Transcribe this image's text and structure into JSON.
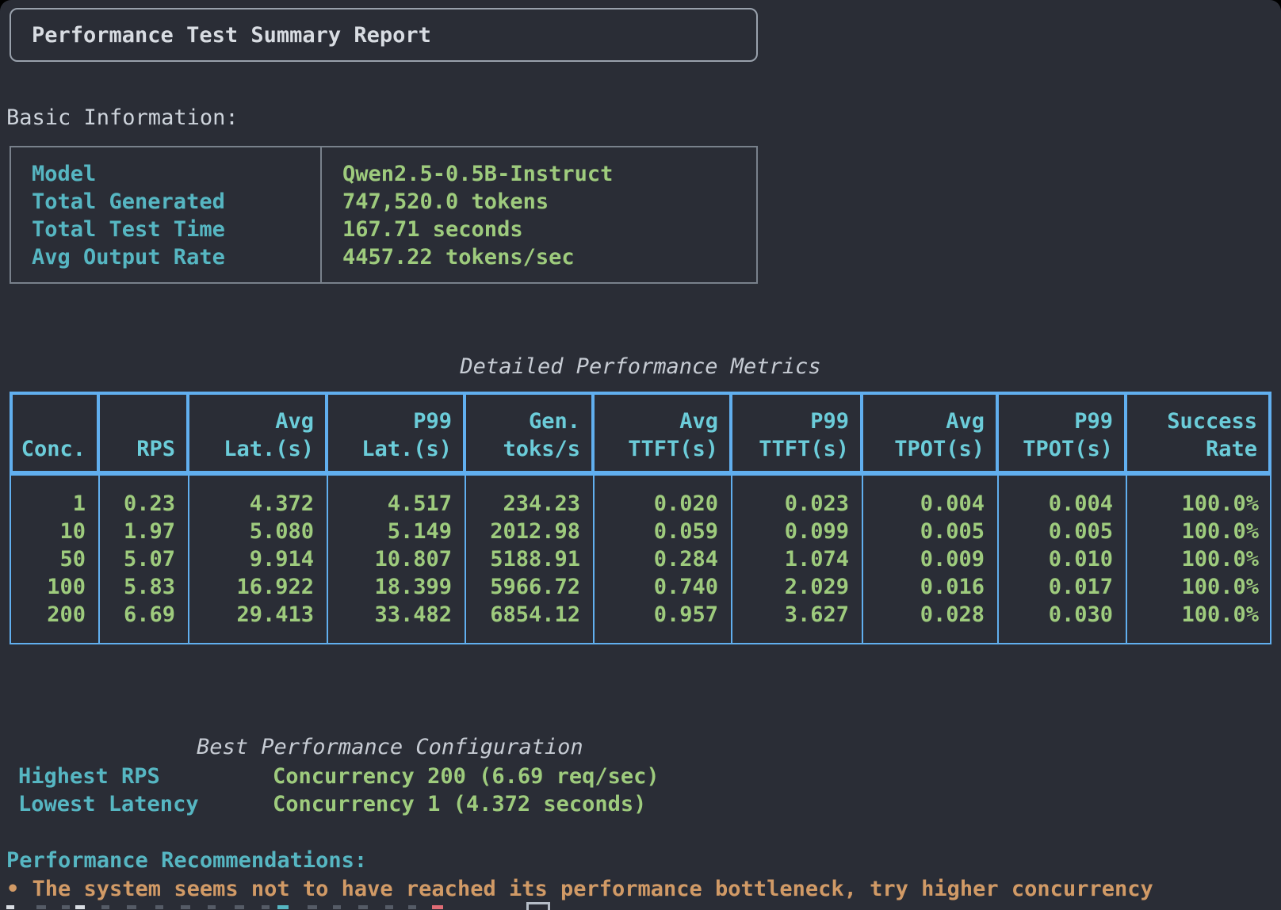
{
  "title": "Performance Test Summary Report",
  "basic_info": {
    "heading": "Basic Information:",
    "rows": [
      {
        "label": "Model",
        "value": "Qwen2.5-0.5B-Instruct"
      },
      {
        "label": "Total Generated",
        "value": "747,520.0 tokens"
      },
      {
        "label": "Total Test Time",
        "value": "167.71 seconds"
      },
      {
        "label": "Avg Output Rate",
        "value": "4457.22 tokens/sec"
      }
    ]
  },
  "metrics_table": {
    "title": "Detailed Performance Metrics",
    "columns": [
      [
        "Conc."
      ],
      [
        "RPS"
      ],
      [
        "Avg",
        "Lat.(s)"
      ],
      [
        "P99",
        "Lat.(s)"
      ],
      [
        "Gen.",
        "toks/s"
      ],
      [
        "Avg",
        "TTFT(s)"
      ],
      [
        "P99",
        "TTFT(s)"
      ],
      [
        "Avg",
        "TPOT(s)"
      ],
      [
        "P99",
        "TPOT(s)"
      ],
      [
        "Success",
        "Rate"
      ]
    ],
    "rows": [
      [
        "1",
        "0.23",
        "4.372",
        "4.517",
        "234.23",
        "0.020",
        "0.023",
        "0.004",
        "0.004",
        "100.0%"
      ],
      [
        "10",
        "1.97",
        "5.080",
        "5.149",
        "2012.98",
        "0.059",
        "0.099",
        "0.005",
        "0.005",
        "100.0%"
      ],
      [
        "50",
        "5.07",
        "9.914",
        "10.807",
        "5188.91",
        "0.284",
        "1.074",
        "0.009",
        "0.010",
        "100.0%"
      ],
      [
        "100",
        "5.83",
        "16.922",
        "18.399",
        "5966.72",
        "0.740",
        "2.029",
        "0.016",
        "0.017",
        "100.0%"
      ],
      [
        "200",
        "6.69",
        "29.413",
        "33.482",
        "6854.12",
        "0.957",
        "3.627",
        "0.028",
        "0.030",
        "100.0%"
      ]
    ]
  },
  "best_config": {
    "title": "Best Performance Configuration",
    "rows": [
      {
        "label": "Highest RPS",
        "value": "Concurrency 200 (6.69 req/sec)"
      },
      {
        "label": "Lowest Latency",
        "value": "Concurrency 1 (4.372 seconds)"
      }
    ]
  },
  "recommendations": {
    "heading": "Performance Recommendations:",
    "items": [
      "• The system seems not to have reached its performance bottleneck, try higher concurrency"
    ]
  },
  "palette": {
    "bg": "#2a2d36",
    "fg": "#ced4dc",
    "bright_fg": "#d8dce2",
    "dim_italic": "#c7ccd4",
    "cyan": "#56b6c2",
    "cyan_bright": "#6bccd9",
    "green": "#9ecb7d",
    "blue": "#61afef",
    "orange": "#d19a66",
    "red": "#e06c75",
    "border_gray": "#79818c",
    "box_gray": "#99a1ac",
    "glyph_gray": "#555b66",
    "cursor_gray": "#b6bdc7"
  }
}
